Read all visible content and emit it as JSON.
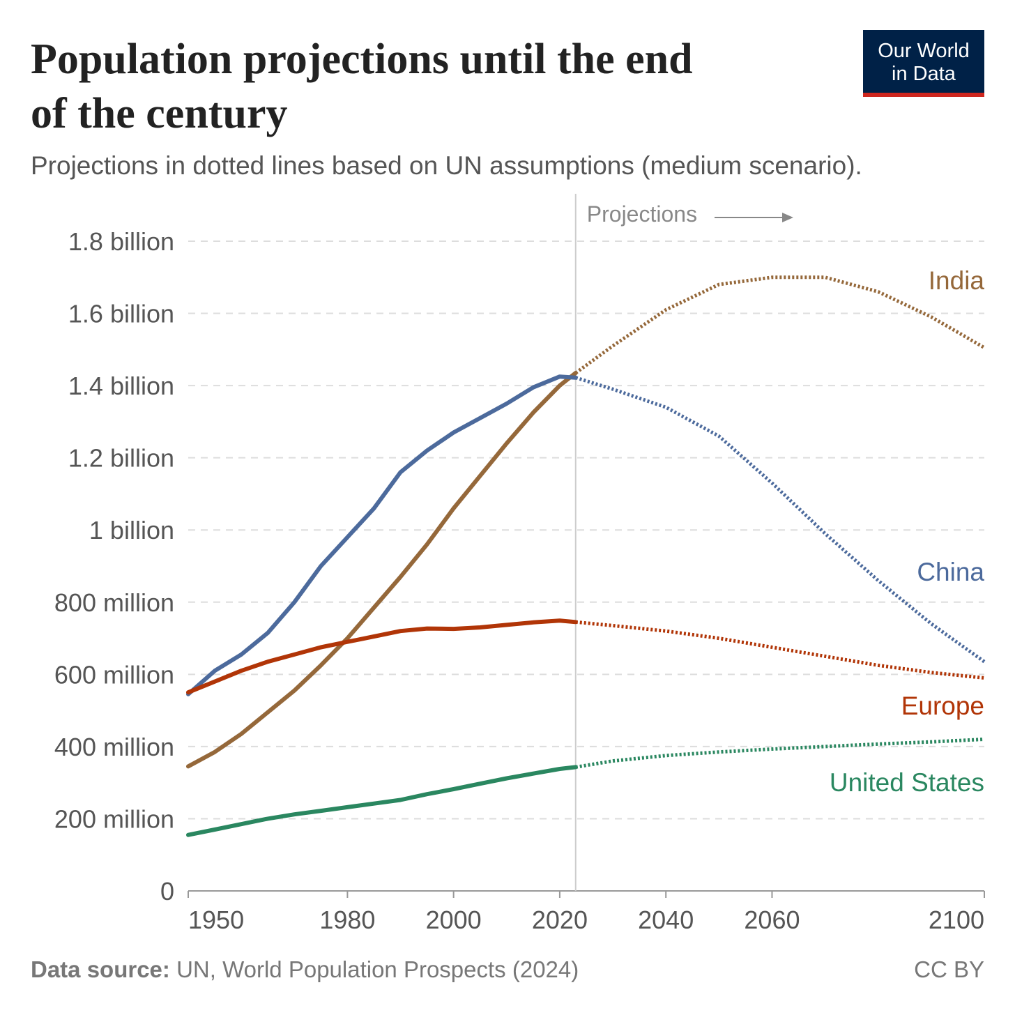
{
  "chart_data": {
    "type": "line",
    "title": [
      "Population projections until the end",
      "of the century"
    ],
    "subtitle": "Projections in dotted lines based on UN assumptions (medium scenario).",
    "logo": [
      "Our World",
      "in Data"
    ],
    "annotation": "Projections",
    "projection_start": 2023,
    "x": [
      1950,
      1955,
      1960,
      1965,
      1970,
      1975,
      1980,
      1985,
      1990,
      1995,
      2000,
      2005,
      2010,
      2015,
      2020,
      2023,
      2030,
      2040,
      2050,
      2060,
      2070,
      2080,
      2090,
      2100
    ],
    "series": [
      {
        "name": "India",
        "color": "#95683a",
        "values": [
          345000000,
          385000000,
          435000000,
          495000000,
          555000000,
          625000000,
          700000000,
          785000000,
          870000000,
          960000000,
          1060000000,
          1150000000,
          1240000000,
          1325000000,
          1400000000,
          1435000000,
          1510000000,
          1610000000,
          1680000000,
          1700000000,
          1700000000,
          1660000000,
          1590000000,
          1505000000
        ]
      },
      {
        "name": "China",
        "color": "#4c6a9c",
        "values": [
          545000000,
          610000000,
          655000000,
          715000000,
          800000000,
          900000000,
          980000000,
          1060000000,
          1160000000,
          1220000000,
          1270000000,
          1310000000,
          1350000000,
          1395000000,
          1425000000,
          1422000000,
          1390000000,
          1340000000,
          1260000000,
          1130000000,
          990000000,
          860000000,
          740000000,
          635000000
        ]
      },
      {
        "name": "Europe",
        "color": "#b13507",
        "values": [
          550000000,
          580000000,
          610000000,
          635000000,
          655000000,
          675000000,
          690000000,
          705000000,
          720000000,
          727000000,
          726000000,
          730000000,
          737000000,
          744000000,
          749000000,
          745000000,
          735000000,
          720000000,
          700000000,
          675000000,
          650000000,
          625000000,
          605000000,
          590000000
        ]
      },
      {
        "name": "United States",
        "color": "#2a8760",
        "values": [
          155000000,
          170000000,
          185000000,
          200000000,
          212000000,
          222000000,
          232000000,
          242000000,
          252000000,
          268000000,
          282000000,
          297000000,
          312000000,
          325000000,
          338000000,
          343000000,
          360000000,
          375000000,
          385000000,
          393000000,
          400000000,
          407000000,
          413000000,
          420000000
        ]
      }
    ],
    "xlim": [
      1950,
      2100
    ],
    "xticks": [
      1950,
      1980,
      2000,
      2020,
      2040,
      2060,
      2100
    ],
    "ylim": [
      0,
      1800000000
    ],
    "yticks": [
      0,
      {
        "value": 200000000,
        "label": "200 million"
      },
      {
        "value": 400000000,
        "label": "400 million"
      },
      {
        "value": 600000000,
        "label": "600 million"
      },
      {
        "value": 800000000,
        "label": "800 million"
      },
      {
        "value": 1000000000,
        "label": "1 billion"
      },
      {
        "value": 1200000000,
        "label": "1.2 billion"
      },
      {
        "value": 1400000000,
        "label": "1.4 billion"
      },
      {
        "value": 1600000000,
        "label": "1.6 billion"
      },
      {
        "value": 1800000000,
        "label": "1.8 billion"
      }
    ],
    "grid": true,
    "source_label": "Data source:",
    "source": "UN, World Population Prospects (2024)",
    "license": "CC BY"
  }
}
